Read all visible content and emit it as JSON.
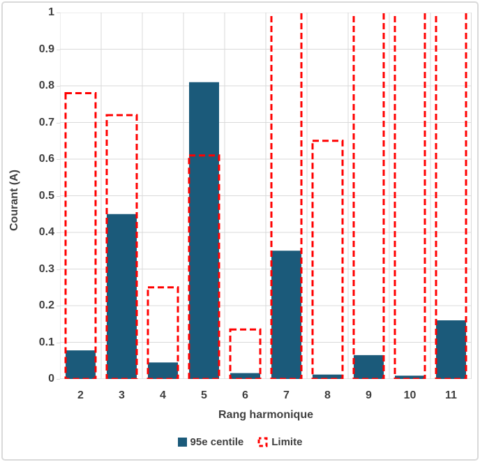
{
  "chart_data": {
    "type": "bar",
    "title": "",
    "xlabel": "Rang harmonique",
    "ylabel": "Courant (A)",
    "categories": [
      "2",
      "3",
      "4",
      "5",
      "6",
      "7",
      "8",
      "9",
      "10",
      "11"
    ],
    "series": [
      {
        "name": "95e centile",
        "style": "filled-bar",
        "color": "#1b5a7a",
        "values": [
          0.078,
          0.45,
          0.045,
          0.81,
          0.016,
          0.35,
          0.012,
          0.065,
          0.009,
          0.16
        ]
      },
      {
        "name": "Limite",
        "style": "dashed-outline-bar",
        "color": "#ff0000",
        "values": [
          0.78,
          0.72,
          0.25,
          0.61,
          0.135,
          ">1",
          0.65,
          ">1",
          ">1",
          ">1"
        ],
        "clipped_note": "values \">1\" exceed the axis maximum and are clipped at the top of the plot"
      }
    ],
    "ylim": [
      0,
      1
    ],
    "ytick_labels": [
      "1",
      "0.9",
      "0.8",
      "0.7",
      "0.6",
      "0.5",
      "0.4",
      "0.3",
      "0.2",
      "0.1",
      "0"
    ],
    "grid": {
      "horizontal": true,
      "vertical": true,
      "color": "#d9d9d9",
      "baseline_color": "#c9c9c9"
    },
    "legend_position": "bottom-center",
    "text_color": "#3f3f3f",
    "frame_border_color": "#d9d9d9"
  }
}
